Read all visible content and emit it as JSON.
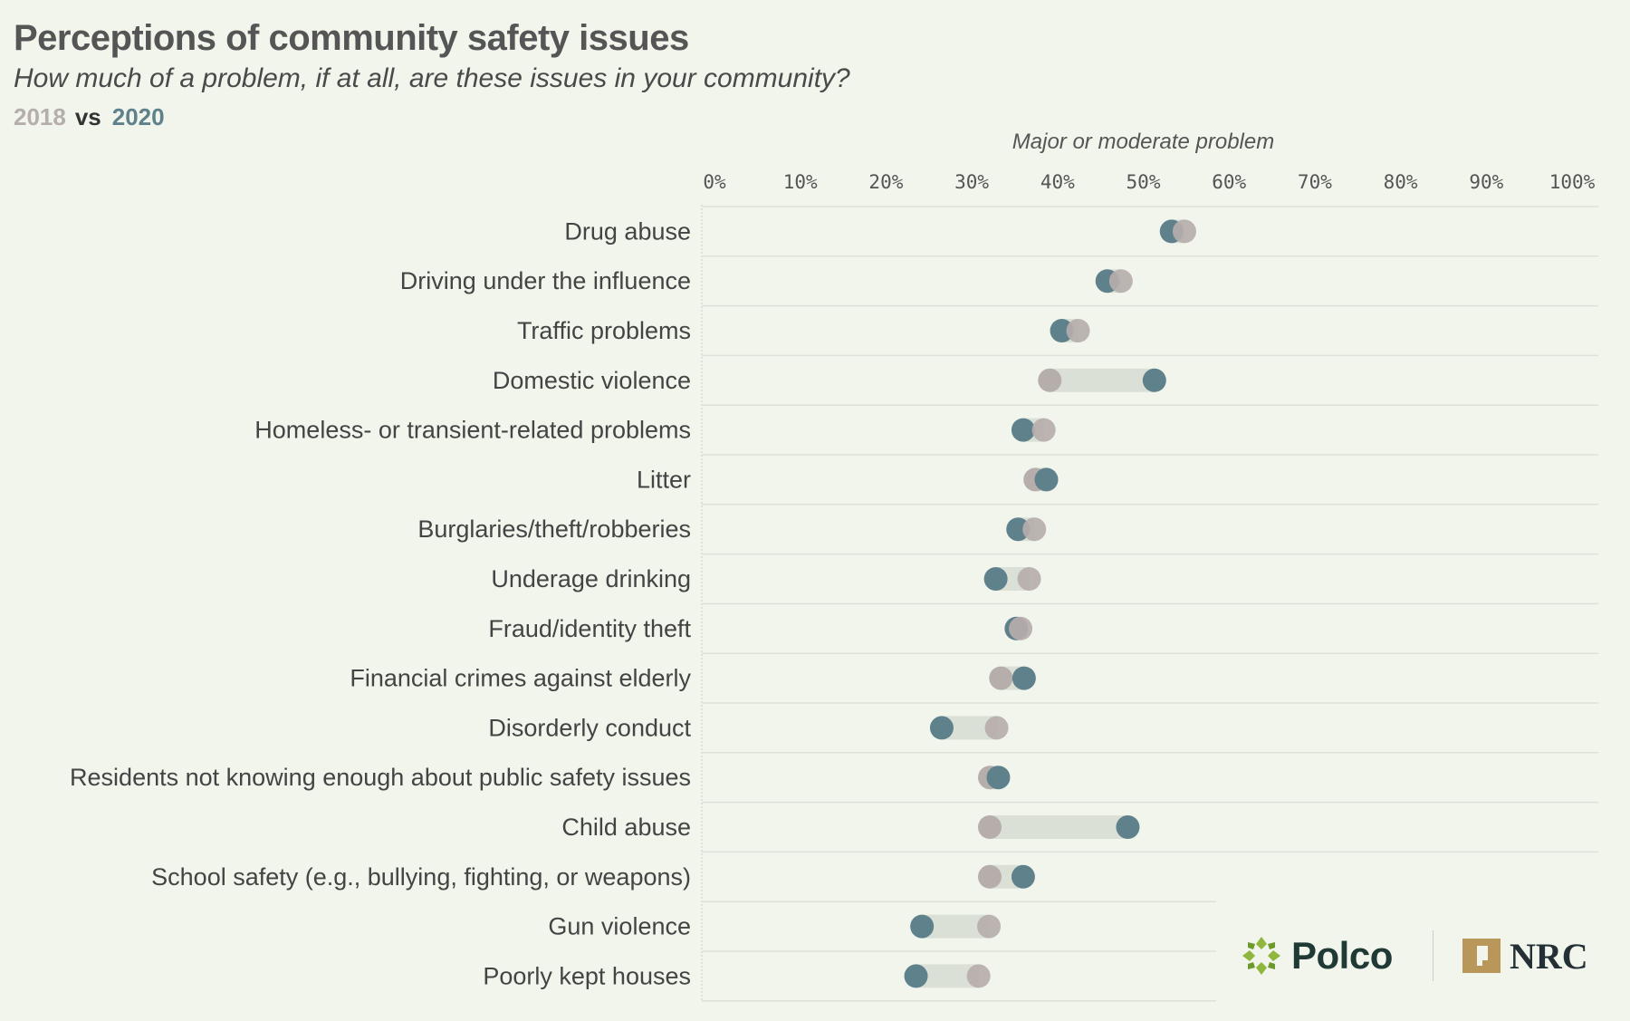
{
  "header": {
    "title": "Perceptions of community safety issues",
    "subtitle": "How much of a problem, if at all, are these issues in your community?",
    "legend_2018": "2018",
    "legend_vs": "vs",
    "legend_2020": "2020"
  },
  "colors": {
    "y2018": "#b6aeab",
    "y2020": "#5f818c",
    "connector": "#dbe0d7",
    "background": "#f1f5ec"
  },
  "chart_data": {
    "type": "dumbbell",
    "title": "Perceptions of community safety issues",
    "xlabel": "Major or moderate problem",
    "ylabel": "",
    "xlim": [
      0,
      100
    ],
    "xticks": [
      "0%",
      "10%",
      "20%",
      "30%",
      "40%",
      "50%",
      "60%",
      "70%",
      "80%",
      "90%",
      "100%"
    ],
    "categories": [
      "Drug abuse",
      "Driving under the influence",
      "Traffic problems",
      "Domestic violence",
      "Homeless- or transient-related problems",
      "Litter",
      "Burglaries/theft/robberies",
      "Underage drinking",
      "Fraud/identity theft",
      "Financial crimes against elderly",
      "Disorderly conduct",
      "Residents not knowing enough about public safety issues",
      "Child abuse",
      "School safety (e.g., bullying, fighting, or weapons)",
      "Gun violence",
      "Poorly kept houses"
    ],
    "series": [
      {
        "name": "2018",
        "values": [
          54.8,
          47.4,
          42.4,
          39.1,
          38.4,
          37.4,
          37.3,
          36.7,
          35.7,
          33.4,
          32.9,
          32.1,
          32.1,
          32.1,
          32.0,
          30.8
        ]
      },
      {
        "name": "2020",
        "values": [
          53.3,
          45.8,
          40.5,
          51.3,
          36.0,
          38.7,
          35.4,
          32.8,
          35.2,
          36.1,
          26.5,
          33.1,
          48.2,
          36.0,
          24.2,
          23.5
        ]
      }
    ]
  },
  "logos": {
    "polco": "Polco",
    "nrc": "NRC"
  }
}
